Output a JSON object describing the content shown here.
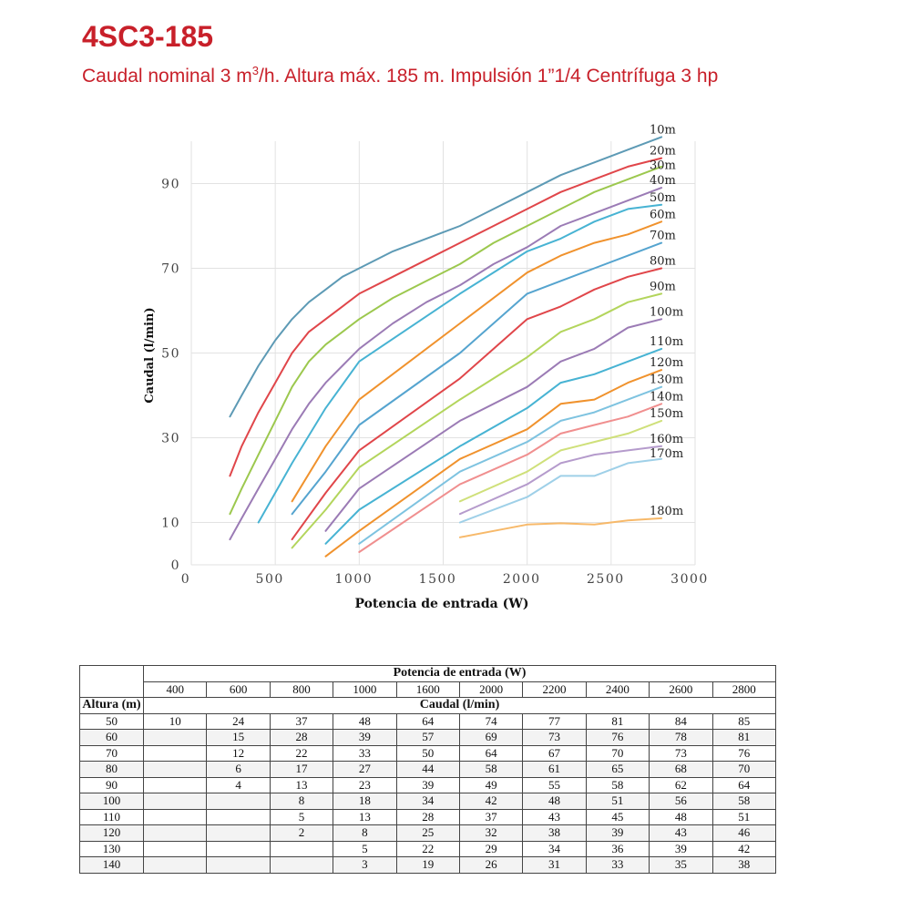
{
  "header": {
    "title": "4SC3-185",
    "subtitle_pre": "Caudal nominal 3 m",
    "subtitle_sup": "3",
    "subtitle_post": "/h.  Altura máx. 185 m. Impulsión 1”1/4 Centrífuga 3 hp"
  },
  "chart_data": {
    "type": "line",
    "xlabel": "Potencia de entrada (W)",
    "ylabel": "Caudal (l/min)",
    "xlim": [
      0,
      3000
    ],
    "ylim": [
      0,
      100
    ],
    "xticks": [
      "0",
      "500",
      "1000",
      "1500",
      "2000",
      "2500",
      "3000"
    ],
    "yticks": [
      "0",
      "10",
      "30",
      "50",
      "70",
      "90"
    ],
    "grid": true,
    "legend": "series labels at right end of each line",
    "series": [
      {
        "name": "10m",
        "color": "#5d9ab5",
        "x": [
          230,
          300,
          400,
          500,
          600,
          700,
          800,
          900,
          1000,
          1200,
          1400,
          1600,
          1800,
          2000,
          2200,
          2400,
          2600,
          2800
        ],
        "y": [
          35,
          40,
          47,
          53,
          58,
          62,
          65,
          68,
          70,
          74,
          77,
          80,
          84,
          88,
          92,
          95,
          98,
          101
        ]
      },
      {
        "name": "20m",
        "color": "#e0464a",
        "x": [
          230,
          300,
          400,
          500,
          600,
          700,
          800,
          900,
          1000,
          1200,
          1400,
          1600,
          1800,
          2000,
          2200,
          2400,
          2600,
          2800
        ],
        "y": [
          21,
          28,
          36,
          43,
          50,
          55,
          58,
          61,
          64,
          68,
          72,
          76,
          80,
          84,
          88,
          91,
          94,
          96
        ]
      },
      {
        "name": "30m",
        "color": "#9cc84e",
        "x": [
          230,
          300,
          400,
          500,
          600,
          700,
          800,
          900,
          1000,
          1200,
          1400,
          1600,
          1800,
          2000,
          2200,
          2400,
          2600,
          2800
        ],
        "y": [
          12,
          18,
          26,
          34,
          42,
          48,
          52,
          55,
          58,
          63,
          67,
          71,
          76,
          80,
          84,
          88,
          91,
          94
        ]
      },
      {
        "name": "40m",
        "color": "#9b7bb5",
        "x": [
          230,
          300,
          400,
          500,
          600,
          700,
          800,
          900,
          1000,
          1200,
          1400,
          1600,
          1800,
          2000,
          2200,
          2400,
          2600,
          2800
        ],
        "y": [
          6,
          11,
          18,
          25,
          32,
          38,
          43,
          47,
          51,
          57,
          62,
          66,
          71,
          75,
          80,
          83,
          86,
          89
        ]
      },
      {
        "name": "50m",
        "color": "#47b3d3",
        "x": [
          400,
          600,
          800,
          1000,
          1600,
          2000,
          2200,
          2400,
          2600,
          2800
        ],
        "y": [
          10,
          24,
          37,
          48,
          64,
          74,
          77,
          81,
          84,
          85
        ]
      },
      {
        "name": "60m",
        "color": "#f0922d",
        "x": [
          600,
          800,
          1000,
          1600,
          2000,
          2200,
          2400,
          2600,
          2800
        ],
        "y": [
          15,
          28,
          39,
          57,
          69,
          73,
          76,
          78,
          81
        ]
      },
      {
        "name": "70m",
        "color": "#55a4cf",
        "x": [
          600,
          800,
          1000,
          1600,
          2000,
          2200,
          2400,
          2600,
          2800
        ],
        "y": [
          12,
          22,
          33,
          50,
          64,
          67,
          70,
          73,
          76
        ]
      },
      {
        "name": "80m",
        "color": "#e0464a",
        "x": [
          600,
          800,
          1000,
          1600,
          2000,
          2200,
          2400,
          2600,
          2800
        ],
        "y": [
          6,
          17,
          27,
          44,
          58,
          61,
          65,
          68,
          70
        ]
      },
      {
        "name": "90m",
        "color": "#b3d55c",
        "x": [
          600,
          800,
          1000,
          1600,
          2000,
          2200,
          2400,
          2600,
          2800
        ],
        "y": [
          4,
          13,
          23,
          39,
          49,
          55,
          58,
          62,
          64
        ]
      },
      {
        "name": "100m",
        "color": "#9b7bb5",
        "x": [
          800,
          1000,
          1600,
          2000,
          2200,
          2400,
          2600,
          2800
        ],
        "y": [
          8,
          18,
          34,
          42,
          48,
          51,
          56,
          58
        ]
      },
      {
        "name": "110m",
        "color": "#47b3d3",
        "x": [
          800,
          1000,
          1600,
          2000,
          2200,
          2400,
          2600,
          2800
        ],
        "y": [
          5,
          13,
          28,
          37,
          43,
          45,
          48,
          51
        ]
      },
      {
        "name": "120m",
        "color": "#f0922d",
        "x": [
          800,
          1000,
          1600,
          2000,
          2200,
          2400,
          2600,
          2800
        ],
        "y": [
          2,
          8,
          25,
          32,
          38,
          39,
          43,
          46
        ]
      },
      {
        "name": "130m",
        "color": "#7ec3e0",
        "x": [
          1000,
          1600,
          2000,
          2200,
          2400,
          2600,
          2800
        ],
        "y": [
          5,
          22,
          29,
          34,
          36,
          39,
          42
        ]
      },
      {
        "name": "140m",
        "color": "#f08f8f",
        "x": [
          1000,
          1600,
          2000,
          2200,
          2400,
          2600,
          2800
        ],
        "y": [
          3,
          19,
          26,
          31,
          33,
          35,
          38
        ]
      },
      {
        "name": "150m",
        "color": "#cfe07a",
        "x": [
          1600,
          2000,
          2200,
          2400,
          2600,
          2800
        ],
        "y": [
          15,
          22,
          27,
          29,
          31,
          34
        ]
      },
      {
        "name": "160m",
        "color": "#b59bcc",
        "x": [
          1600,
          2000,
          2200,
          2400,
          2600,
          2800
        ],
        "y": [
          12,
          19,
          24,
          26,
          27,
          28
        ]
      },
      {
        "name": "170m",
        "color": "#9fd0e8",
        "x": [
          1600,
          2000,
          2200,
          2400,
          2600,
          2800
        ],
        "y": [
          10,
          16,
          21,
          21,
          24,
          25
        ]
      },
      {
        "name": "180m",
        "color": "#f7b96a",
        "x": [
          1600,
          2000,
          2200,
          2400,
          2600,
          2800
        ],
        "y": [
          6.5,
          9.5,
          9.8,
          9.5,
          10.5,
          11
        ]
      }
    ]
  },
  "table": {
    "group_header": "Potencia de entrada (W)",
    "columns": [
      "400",
      "600",
      "800",
      "1000",
      "1600",
      "2000",
      "2200",
      "2400",
      "2600",
      "2800"
    ],
    "row_header": "Altura (m)",
    "sub_header": "Caudal (l/min)",
    "rows": [
      {
        "altura": "50",
        "values": [
          "10",
          "24",
          "37",
          "48",
          "64",
          "74",
          "77",
          "81",
          "84",
          "85"
        ]
      },
      {
        "altura": "60",
        "values": [
          "",
          "15",
          "28",
          "39",
          "57",
          "69",
          "73",
          "76",
          "78",
          "81"
        ]
      },
      {
        "altura": "70",
        "values": [
          "",
          "12",
          "22",
          "33",
          "50",
          "64",
          "67",
          "70",
          "73",
          "76"
        ]
      },
      {
        "altura": "80",
        "values": [
          "",
          "6",
          "17",
          "27",
          "44",
          "58",
          "61",
          "65",
          "68",
          "70"
        ]
      },
      {
        "altura": "90",
        "values": [
          "",
          "4",
          "13",
          "23",
          "39",
          "49",
          "55",
          "58",
          "62",
          "64"
        ]
      },
      {
        "altura": "100",
        "values": [
          "",
          "",
          "8",
          "18",
          "34",
          "42",
          "48",
          "51",
          "56",
          "58"
        ]
      },
      {
        "altura": "110",
        "values": [
          "",
          "",
          "5",
          "13",
          "28",
          "37",
          "43",
          "45",
          "48",
          "51"
        ]
      },
      {
        "altura": "120",
        "values": [
          "",
          "",
          "2",
          "8",
          "25",
          "32",
          "38",
          "39",
          "43",
          "46"
        ]
      },
      {
        "altura": "130",
        "values": [
          "",
          "",
          "",
          "5",
          "22",
          "29",
          "34",
          "36",
          "39",
          "42"
        ]
      },
      {
        "altura": "140",
        "values": [
          "",
          "",
          "",
          "3",
          "19",
          "26",
          "31",
          "33",
          "35",
          "38"
        ]
      }
    ]
  }
}
